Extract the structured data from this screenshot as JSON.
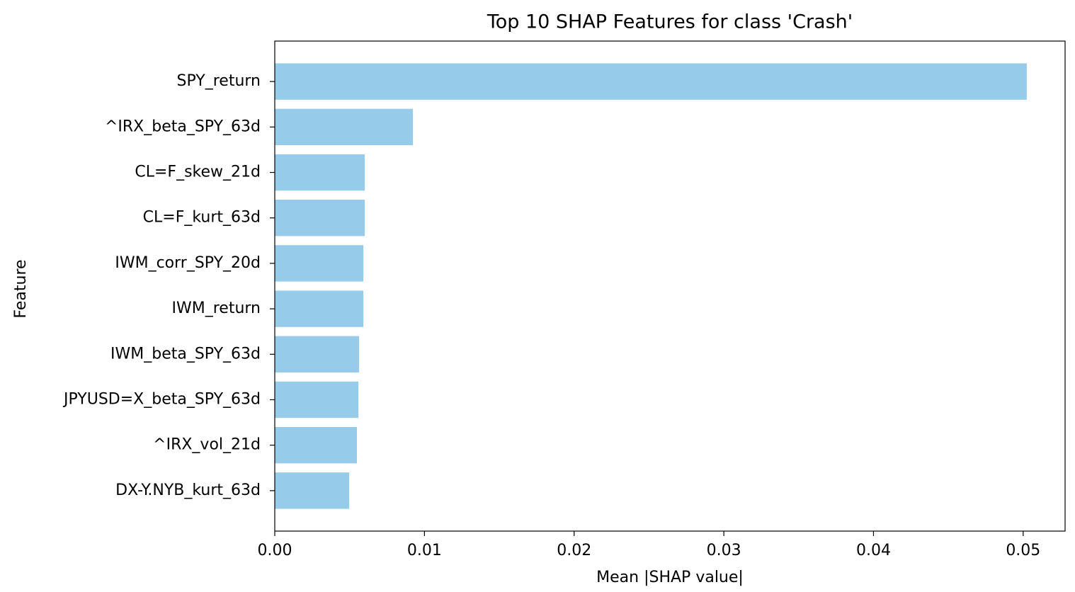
{
  "chart_data": {
    "type": "barh",
    "title": "Top 10 SHAP Features for class 'Crash'",
    "xlabel": "Mean |SHAP value|",
    "ylabel": "Feature",
    "categories": [
      "SPY_return",
      "^IRX_beta_SPY_63d",
      "CL=F_skew_21d",
      "CL=F_kurt_63d",
      "IWM_corr_SPY_20d",
      "IWM_return",
      "IWM_beta_SPY_63d",
      "JPYUSD=X_beta_SPY_63d",
      "^IRX_vol_21d",
      "DX-Y.NYB_kurt_63d"
    ],
    "values": [
      0.05024,
      0.00923,
      0.00601,
      0.00601,
      0.00592,
      0.00592,
      0.00563,
      0.00559,
      0.00549,
      0.00497
    ],
    "color": "#96cbe9",
    "xlim": [
      0,
      0.0528
    ],
    "xticks": [
      {
        "value": 0,
        "label": "0.00"
      },
      {
        "value": 0.01,
        "label": "0.01"
      },
      {
        "value": 0.02,
        "label": "0.02"
      },
      {
        "value": 0.03,
        "label": "0.03"
      },
      {
        "value": 0.04,
        "label": "0.04"
      },
      {
        "value": 0.05,
        "label": "0.05"
      }
    ],
    "grid": false
  }
}
